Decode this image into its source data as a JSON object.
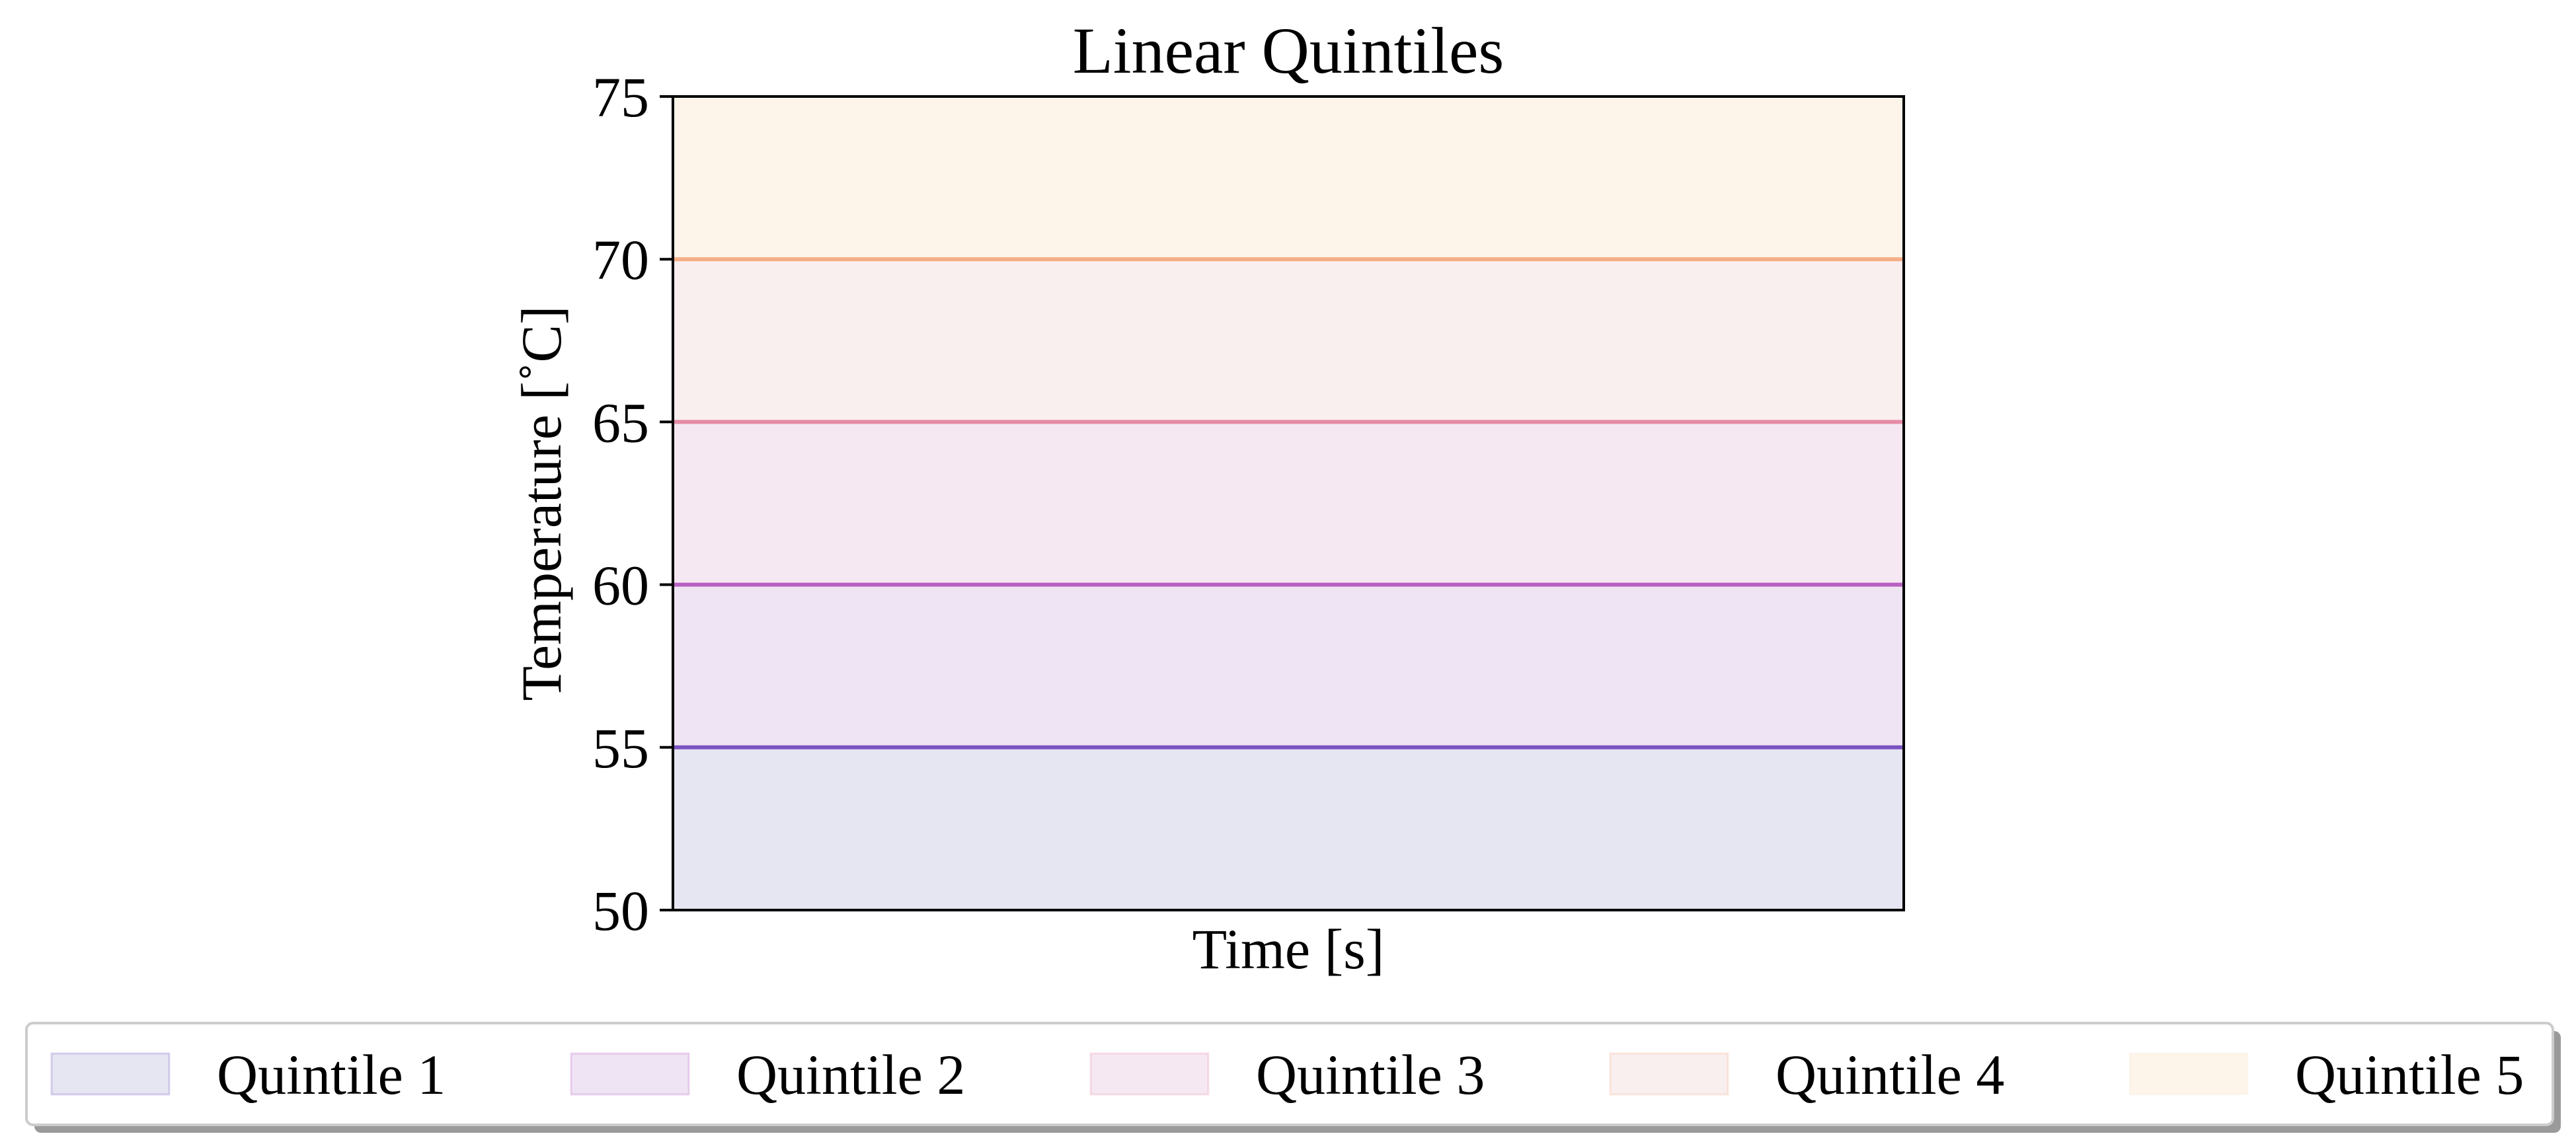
{
  "chart_data": {
    "type": "area",
    "title": "Linear Quintiles",
    "xlabel": "Time [s]",
    "ylabel": "Temperature [$^\\circ$C]",
    "ylabel_display": "Temperature [˚C]",
    "ylim": [
      50,
      75
    ],
    "yticks": [
      "50",
      "55",
      "60",
      "65",
      "70",
      "75"
    ],
    "xticks": [],
    "grid": false,
    "legend_position": "bottom-outside",
    "bands": [
      {
        "name": "Quintile 1",
        "lower": 50,
        "upper": 55,
        "fill": "#e6e6f2",
        "line": "#7b52c1"
      },
      {
        "name": "Quintile 2",
        "lower": 55,
        "upper": 60,
        "fill": "#efe4f4",
        "line": "#b760c1"
      },
      {
        "name": "Quintile 3",
        "lower": 60,
        "upper": 65,
        "fill": "#f5e8f2",
        "line": "#e68aa6"
      },
      {
        "name": "Quintile 4",
        "lower": 65,
        "upper": 70,
        "fill": "#faefef",
        "line": "#f5ad85"
      },
      {
        "name": "Quintile 5",
        "lower": 70,
        "upper": 75,
        "fill": "#fdf5ea",
        "line": null
      }
    ]
  }
}
